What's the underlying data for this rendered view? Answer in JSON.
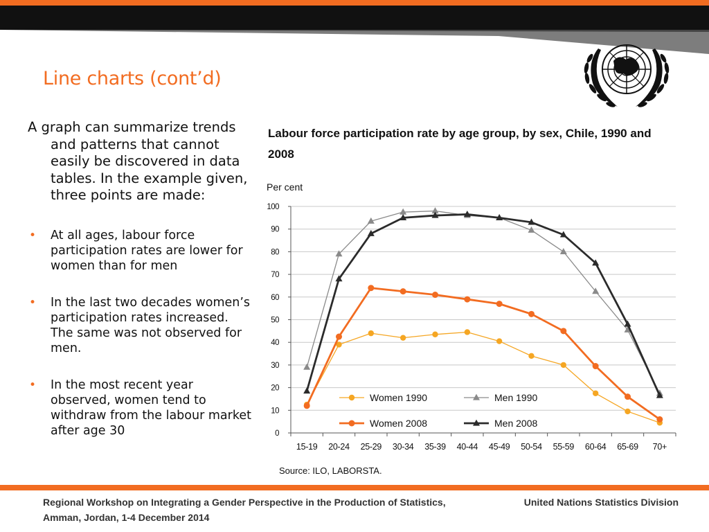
{
  "slide": {
    "title": "Line charts (cont’d)",
    "intro": "A graph can summarize trends and patterns that cannot easily be discovered in data tables. In the example given, three points are made:",
    "bullets": [
      "At all ages, labour force participation rates are lower for women than for men",
      "In the last two decades women’s participation rates increased. The same was not observed for men.",
      "In the most recent year observed, women tend to withdraw from the labour market after age 30"
    ],
    "source": "Source: ILO, LABORSTA.",
    "footer_left": "Regional Workshop on Integrating a Gender Perspective in the Production of Statistics, Amman, Jordan, 1-4 December 2014",
    "footer_right": "United Nations Statistics Division"
  },
  "colors": {
    "accent": "#f26c21",
    "women_1990": "#f5a623",
    "women_2008": "#f26c21",
    "men_1990": "#8a8a8a",
    "men_2008": "#2b2b2b"
  },
  "chart_data": {
    "type": "line",
    "title": "Labour force participation rate by age group, by sex, Chile, 1990 and 2008",
    "ylabel": "Per cent",
    "xlabel": "",
    "ylim": [
      0,
      100
    ],
    "yticks": [
      0,
      10,
      20,
      30,
      40,
      50,
      60,
      70,
      80,
      90,
      100
    ],
    "grid": true,
    "legend": "inside-bottom",
    "categories": [
      "15-19",
      "20-24",
      "25-29",
      "30-34",
      "35-39",
      "40-44",
      "45-49",
      "50-54",
      "55-59",
      "60-64",
      "65-69",
      "70+"
    ],
    "series": [
      {
        "name": "Women 1990",
        "marker": "circle",
        "values": [
          12.5,
          39,
          44,
          42,
          43.5,
          44.5,
          40.5,
          34,
          30,
          17.5,
          9.5,
          4.5
        ]
      },
      {
        "name": "Men 1990",
        "marker": "triangle",
        "values": [
          29,
          79,
          93.5,
          97.5,
          98,
          96,
          95,
          89.5,
          80,
          62.5,
          45.5,
          17.5
        ]
      },
      {
        "name": "Women 2008",
        "marker": "circle",
        "values": [
          12,
          42.5,
          64,
          62.5,
          61,
          59,
          57,
          52.5,
          45,
          29.5,
          16,
          6
        ]
      },
      {
        "name": "Men 2008",
        "marker": "triangle",
        "values": [
          18.5,
          68,
          88,
          95,
          96,
          96.5,
          95,
          93,
          87.5,
          75,
          48,
          16.5
        ]
      }
    ]
  }
}
